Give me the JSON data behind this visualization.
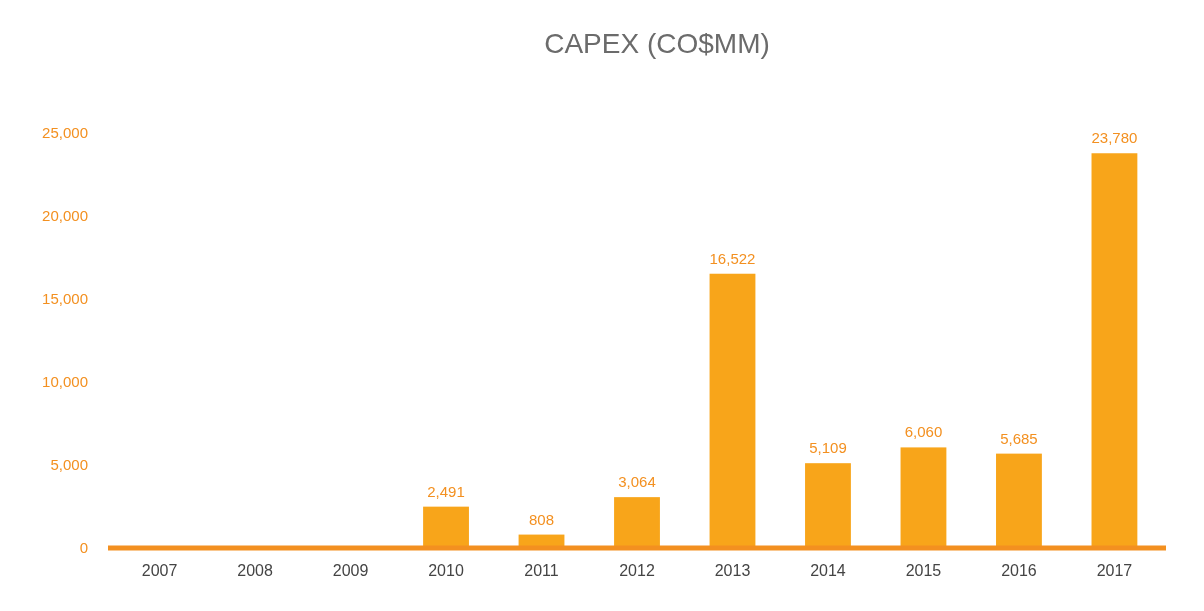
{
  "chart_data": {
    "type": "bar",
    "title": "CAPEX (CO$MM)",
    "categories": [
      "2007",
      "2008",
      "2009",
      "2010",
      "2011",
      "2012",
      "2013",
      "2014",
      "2015",
      "2016",
      "2017"
    ],
    "series": [
      {
        "color": "#f8a51a",
        "values": [
          null,
          null,
          null,
          2491,
          808,
          3064,
          16522,
          5109,
          6060,
          5685,
          23780
        ],
        "value_labels": [
          null,
          null,
          null,
          "2,491",
          "808",
          "3,064",
          "16,522",
          "5,109",
          "6,060",
          "5,685",
          "23,780"
        ]
      }
    ],
    "ylim": [
      0,
      25000
    ],
    "yticks": [
      {
        "value": 0,
        "label": "0"
      },
      {
        "value": 5000,
        "label": "5,000"
      },
      {
        "value": 10000,
        "label": "10,000"
      },
      {
        "value": 15000,
        "label": "15,000"
      },
      {
        "value": 20000,
        "label": "20,000"
      },
      {
        "value": 25000,
        "label": "25,000"
      }
    ],
    "grid": false
  }
}
